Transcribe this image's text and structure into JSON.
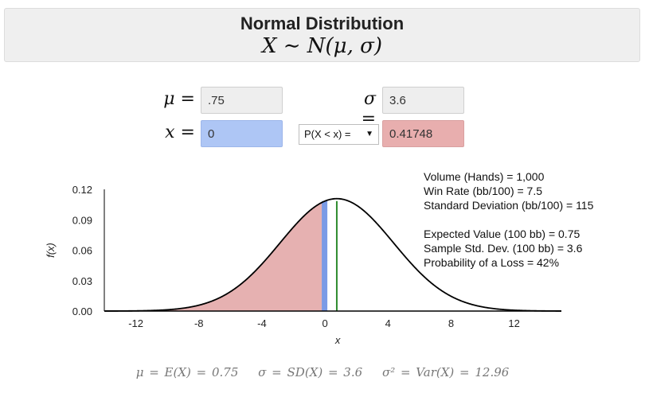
{
  "header": {
    "title": "Normal Distribution",
    "formula": "X ∼ N(μ, σ)"
  },
  "params": {
    "mu_label": "μ =",
    "mu_value": ".75",
    "sigma_label": "σ =",
    "sigma_value": "3.6",
    "x_label": "x =",
    "x_value": "0",
    "prob_select": "P(X < x) =",
    "prob_value": "0.41748"
  },
  "stats": {
    "volume": "Volume (Hands) = 1,000",
    "win_rate": "Win Rate (bb/100) = 7.5",
    "std_dev": "Standard Deviation (bb/100) = 115",
    "expected_value": "Expected Value (100 bb) = 0.75",
    "sample_std": "Sample Std. Dev. (100 bb) = 3.6",
    "prob_loss": "Probability of a Loss = 42%"
  },
  "chart_data": {
    "type": "area",
    "xlabel": "x",
    "ylabel": "f(x)",
    "xlim": [
      -14,
      15
    ],
    "ylim": [
      0,
      0.12
    ],
    "x_ticks": [
      -12,
      -8,
      -4,
      0,
      4,
      8,
      12
    ],
    "y_ticks": [
      "0.00",
      "0.03",
      "0.06",
      "0.09",
      "0.12"
    ],
    "mu": 0.75,
    "sigma": 3.6,
    "x_value": 0,
    "shaded_region": "x < 0",
    "colors": {
      "curve": "#000000",
      "shade": "#e6b1b1",
      "x_marker": "#7b9be6",
      "mean_line": "#2e8b2e"
    }
  },
  "footer": {
    "mean": "μ = E(X) = 0.75",
    "sd": "σ = SD(X) = 3.6",
    "var": "σ² = Var(X) = 12.96"
  }
}
